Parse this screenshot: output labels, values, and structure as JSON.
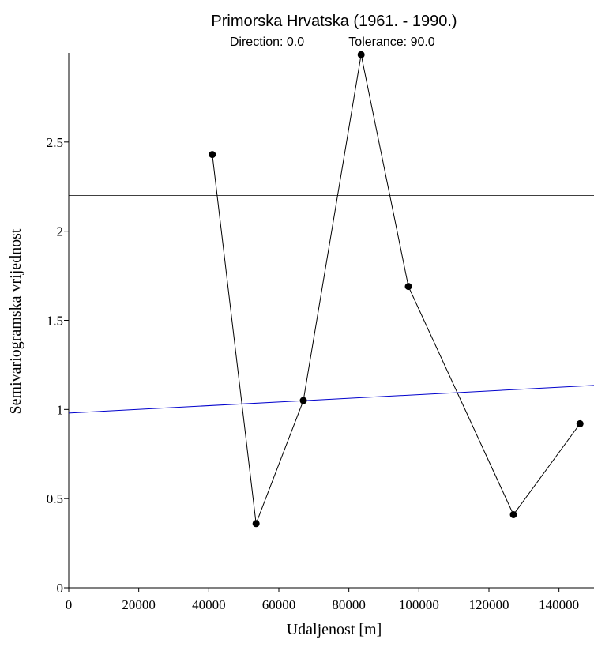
{
  "chart_data": {
    "type": "line",
    "title": "Primorska Hrvatska (1961. - 1990.)",
    "subtitle": {
      "direction": "Direction: 0.0",
      "tolerance": "Tolerance: 90.0"
    },
    "xlabel": "Udaljenost [m]",
    "ylabel": "Semivariogramska vrijednost",
    "xlim": [
      0,
      150000
    ],
    "ylim": [
      0,
      3.0
    ],
    "x_ticks": [
      0,
      20000,
      40000,
      60000,
      80000,
      100000,
      120000,
      140000
    ],
    "y_ticks": [
      0,
      0.5,
      1,
      1.5,
      2,
      2.5
    ],
    "x_tick_labels": [
      "0",
      "20000",
      "40000",
      "60000",
      "80000",
      "100000",
      "120000",
      "140000"
    ],
    "y_tick_labels": [
      "0",
      "0.5",
      "1",
      "1.5",
      "2",
      "2.5"
    ],
    "grid": false,
    "series": [
      {
        "kind": "empirical",
        "color": "#000000",
        "x": [
          41000,
          53500,
          67000,
          83500,
          97000,
          127000,
          146000
        ],
        "y": [
          2.43,
          0.36,
          1.05,
          2.99,
          1.69,
          0.41,
          0.92
        ]
      }
    ],
    "reference_lines": [
      {
        "kind": "horizontal",
        "color": "#000000",
        "y": 2.2
      },
      {
        "kind": "linear-model",
        "color": "#0000cc",
        "x": [
          0,
          150000
        ],
        "y": [
          0.98,
          1.135
        ]
      }
    ]
  }
}
